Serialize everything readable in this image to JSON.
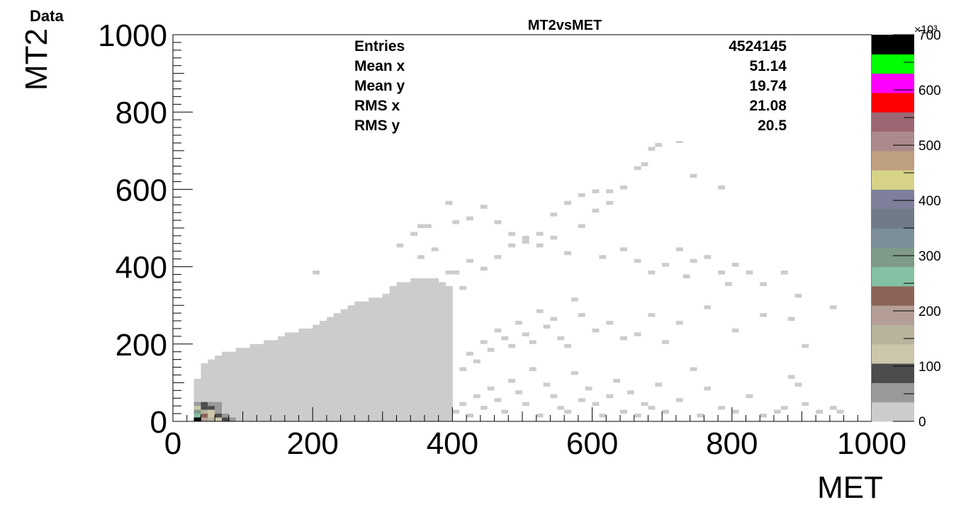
{
  "corner_label": "Data",
  "chart_data": {
    "type": "heatmap",
    "title": "MT2vsMET",
    "xlabel": "MET",
    "ylabel": "MT2",
    "xlim": [
      0,
      1000
    ],
    "ylim": [
      0,
      1000
    ],
    "x_ticks": [
      "0",
      "200",
      "400",
      "600",
      "800",
      "1000"
    ],
    "y_ticks": [
      "0",
      "200",
      "400",
      "600",
      "800",
      "1000"
    ],
    "bin_width": 10,
    "grid": false,
    "legend": "none",
    "stats": [
      {
        "label": "Entries",
        "value": "4524145"
      },
      {
        "label": "Mean x",
        "value": "51.14"
      },
      {
        "label": "Mean y",
        "value": "19.74"
      },
      {
        "label": "RMS x",
        "value": "21.08"
      },
      {
        "label": "RMS y",
        "value": "20.5"
      }
    ],
    "z_axis": {
      "range": [
        0,
        700
      ],
      "ticks": [
        "0",
        "100",
        "200",
        "300",
        "400",
        "500",
        "600",
        "700"
      ],
      "multiplier": "×10³",
      "palette": [
        "#cccccc",
        "#999999",
        "#4c4c4c",
        "#ccc6aa",
        "#b7b39d",
        "#b59e96",
        "#8b6457",
        "#83c1a2",
        "#7f9a87",
        "#7c8e98",
        "#6f7b86",
        "#7f7f9c",
        "#d6d387",
        "#be9f80",
        "#ab8a8c",
        "#9b6772",
        "#ff0000",
        "#ff00ff",
        "#00ff00",
        "#000000"
      ]
    },
    "bulk_region": {
      "description": "filled low-count region (bins with content)",
      "upper_edge": [
        {
          "met": 30,
          "mt2": 110
        },
        {
          "met": 40,
          "mt2": 150
        },
        {
          "met": 70,
          "mt2": 180
        },
        {
          "met": 100,
          "mt2": 190
        },
        {
          "met": 150,
          "mt2": 220
        },
        {
          "met": 200,
          "mt2": 250
        },
        {
          "met": 250,
          "mt2": 300
        },
        {
          "met": 300,
          "mt2": 330
        },
        {
          "met": 320,
          "mt2": 360
        },
        {
          "met": 360,
          "mt2": 370
        },
        {
          "met": 380,
          "mt2": 360
        },
        {
          "met": 400,
          "mt2": 330
        }
      ],
      "max_met": 400
    },
    "high_bins": [
      {
        "met": 30,
        "mt2": 0,
        "level": 19
      },
      {
        "met": 40,
        "mt2": 0,
        "level": 5
      },
      {
        "met": 50,
        "mt2": 0,
        "level": 4
      },
      {
        "met": 60,
        "mt2": 0,
        "level": 3
      },
      {
        "met": 70,
        "mt2": 0,
        "level": 2
      },
      {
        "met": 80,
        "mt2": 0,
        "level": 1
      },
      {
        "met": 30,
        "mt2": 10,
        "level": 7
      },
      {
        "met": 40,
        "mt2": 10,
        "level": 6
      },
      {
        "met": 50,
        "mt2": 10,
        "level": 3
      },
      {
        "met": 60,
        "mt2": 10,
        "level": 2
      },
      {
        "met": 70,
        "mt2": 10,
        "level": 1
      },
      {
        "met": 30,
        "mt2": 20,
        "level": 8
      },
      {
        "met": 40,
        "mt2": 20,
        "level": 4
      },
      {
        "met": 50,
        "mt2": 20,
        "level": 3
      },
      {
        "met": 60,
        "mt2": 20,
        "level": 1
      },
      {
        "met": 30,
        "mt2": 30,
        "level": 3
      },
      {
        "met": 40,
        "mt2": 30,
        "level": 2
      },
      {
        "met": 50,
        "mt2": 30,
        "level": 2
      },
      {
        "met": 60,
        "mt2": 30,
        "level": 1
      },
      {
        "met": 30,
        "mt2": 40,
        "level": 1
      },
      {
        "met": 40,
        "mt2": 40,
        "level": 2
      },
      {
        "met": 50,
        "mt2": 40,
        "level": 1
      },
      {
        "met": 60,
        "mt2": 40,
        "level": 1
      }
    ],
    "sparse_bins": [
      [
        400,
        20
      ],
      [
        410,
        40
      ],
      [
        420,
        10
      ],
      [
        430,
        60
      ],
      [
        440,
        30
      ],
      [
        450,
        80
      ],
      [
        460,
        50
      ],
      [
        470,
        20
      ],
      [
        480,
        100
      ],
      [
        490,
        70
      ],
      [
        500,
        40
      ],
      [
        510,
        130
      ],
      [
        520,
        10
      ],
      [
        530,
        90
      ],
      [
        540,
        60
      ],
      [
        550,
        30
      ],
      [
        560,
        20
      ],
      [
        570,
        120
      ],
      [
        580,
        50
      ],
      [
        590,
        80
      ],
      [
        600,
        40
      ],
      [
        610,
        10
      ],
      [
        620,
        60
      ],
      [
        630,
        100
      ],
      [
        640,
        20
      ],
      [
        650,
        70
      ],
      [
        660,
        10
      ],
      [
        670,
        40
      ],
      [
        680,
        30
      ],
      [
        690,
        90
      ],
      [
        700,
        20
      ],
      [
        720,
        50
      ],
      [
        740,
        130
      ],
      [
        750,
        10
      ],
      [
        760,
        80
      ],
      [
        780,
        30
      ],
      [
        800,
        20
      ],
      [
        820,
        60
      ],
      [
        840,
        10
      ],
      [
        860,
        20
      ],
      [
        870,
        30
      ],
      [
        880,
        110
      ],
      [
        890,
        90
      ],
      [
        900,
        40
      ],
      [
        920,
        20
      ],
      [
        940,
        30
      ],
      [
        950,
        20
      ],
      [
        410,
        130
      ],
      [
        420,
        170
      ],
      [
        430,
        150
      ],
      [
        440,
        200
      ],
      [
        450,
        180
      ],
      [
        460,
        230
      ],
      [
        470,
        210
      ],
      [
        480,
        190
      ],
      [
        490,
        250
      ],
      [
        500,
        220
      ],
      [
        510,
        200
      ],
      [
        520,
        280
      ],
      [
        530,
        240
      ],
      [
        540,
        260
      ],
      [
        550,
        210
      ],
      [
        560,
        190
      ],
      [
        570,
        310
      ],
      [
        580,
        270
      ],
      [
        600,
        230
      ],
      [
        620,
        250
      ],
      [
        640,
        210
      ],
      [
        660,
        220
      ],
      [
        680,
        270
      ],
      [
        700,
        200
      ],
      [
        720,
        250
      ],
      [
        760,
        290
      ],
      [
        800,
        230
      ],
      [
        840,
        270
      ],
      [
        880,
        260
      ],
      [
        900,
        190
      ],
      [
        940,
        290
      ],
      [
        400,
        380
      ],
      [
        410,
        340
      ],
      [
        420,
        410
      ],
      [
        440,
        390
      ],
      [
        460,
        420
      ],
      [
        480,
        450
      ],
      [
        500,
        460
      ],
      [
        520,
        480
      ],
      [
        540,
        470
      ],
      [
        560,
        430
      ],
      [
        580,
        500
      ],
      [
        600,
        540
      ],
      [
        610,
        420
      ],
      [
        620,
        560
      ],
      [
        640,
        440
      ],
      [
        660,
        410
      ],
      [
        680,
        380
      ],
      [
        700,
        400
      ],
      [
        720,
        440
      ],
      [
        730,
        370
      ],
      [
        740,
        410
      ],
      [
        760,
        420
      ],
      [
        780,
        380
      ],
      [
        790,
        350
      ],
      [
        800,
        400
      ],
      [
        820,
        380
      ],
      [
        840,
        350
      ],
      [
        870,
        380
      ],
      [
        890,
        320
      ],
      [
        400,
        510
      ],
      [
        420,
        520
      ],
      [
        440,
        550
      ],
      [
        460,
        510
      ],
      [
        480,
        480
      ],
      [
        500,
        470
      ],
      [
        520,
        450
      ],
      [
        540,
        530
      ],
      [
        560,
        560
      ],
      [
        580,
        580
      ],
      [
        600,
        590
      ],
      [
        620,
        590
      ],
      [
        640,
        600
      ],
      [
        660,
        650
      ],
      [
        670,
        660
      ],
      [
        680,
        700
      ],
      [
        690,
        710
      ],
      [
        720,
        720
      ],
      [
        730,
        730
      ],
      [
        740,
        630
      ],
      [
        780,
        600
      ],
      [
        390,
        560
      ],
      [
        390,
        380
      ],
      [
        350,
        420
      ],
      [
        370,
        440
      ],
      [
        340,
        480
      ],
      [
        360,
        500
      ],
      [
        320,
        450
      ],
      [
        200,
        380
      ],
      [
        350,
        500
      ]
    ]
  }
}
